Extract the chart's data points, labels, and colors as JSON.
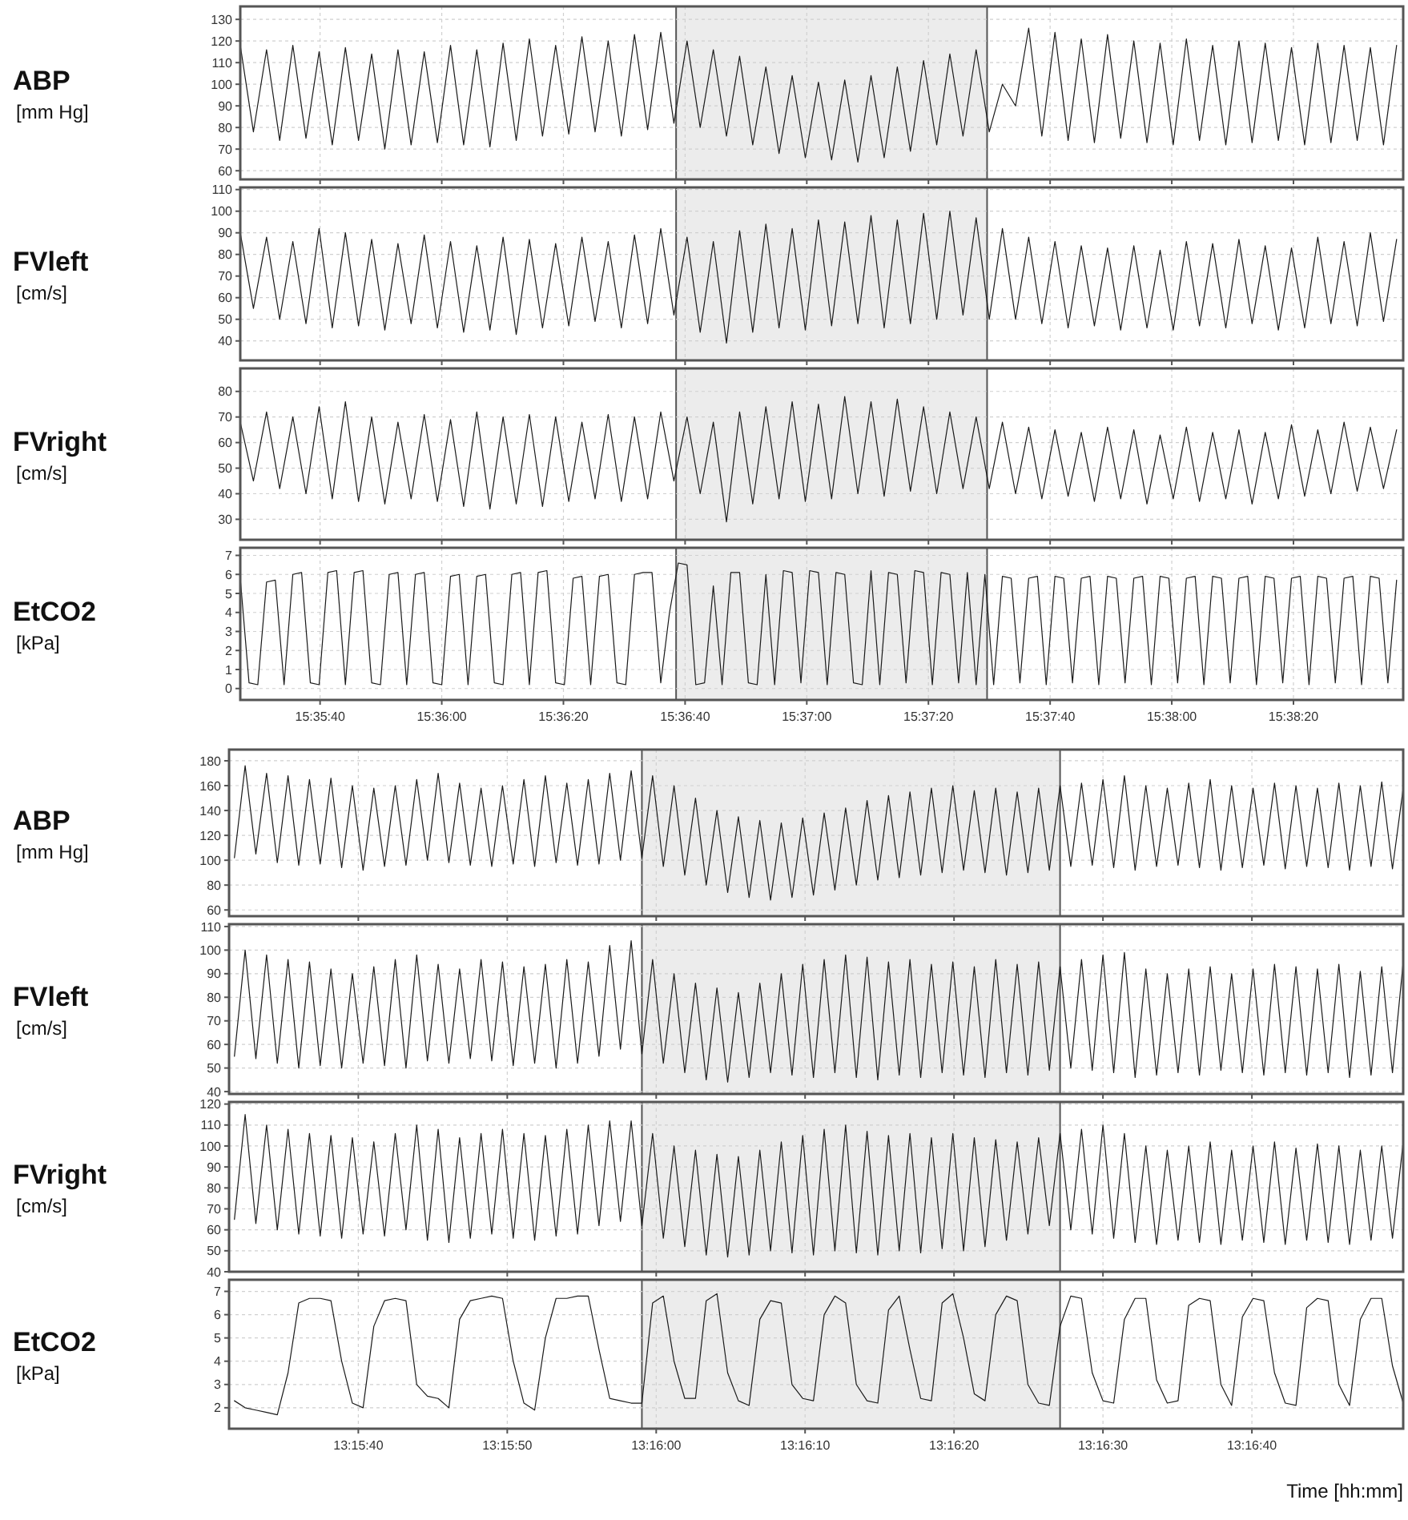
{
  "chart_data": [
    {
      "type": "line",
      "ylabel": "ABP\n[mm Hg]",
      "tick_labels": "y",
      "grid": true,
      "color": "#1a1a1a",
      "x": [
        15.5908,
        15.5914,
        15.592,
        15.5926,
        15.5932,
        15.5938,
        15.5944,
        15.595,
        15.5956,
        15.5962,
        15.5968,
        15.5974,
        15.598,
        15.5986,
        15.5992,
        15.5998,
        15.6004,
        15.601,
        15.6016,
        15.6022,
        15.6028,
        15.6034,
        15.604,
        15.6046,
        15.6052,
        15.6058,
        15.6064,
        15.607,
        15.6076,
        15.6082,
        15.6088,
        15.6094,
        15.61,
        15.6106,
        15.6112,
        15.6118,
        15.6124,
        15.613,
        15.6136,
        15.6142,
        15.6148,
        15.6154,
        15.616,
        15.6166,
        15.6172,
        15.6178,
        15.6184,
        15.619,
        15.6196,
        15.6202,
        15.6208,
        15.6214,
        15.622,
        15.6226,
        15.6232,
        15.6238,
        15.6244,
        15.625,
        15.6256,
        15.6262,
        15.6268,
        15.6274,
        15.628,
        15.6286,
        15.6292,
        15.6298,
        15.6304,
        15.631,
        15.6316,
        15.6322,
        15.6328,
        15.6334,
        15.634,
        15.6346,
        15.6352,
        15.6358,
        15.6364,
        15.637,
        15.6376,
        15.6382,
        15.6388,
        15.6394,
        15.64,
        15.6406,
        15.6412,
        15.6418,
        15.6424,
        15.643,
        15.6436
      ],
      "values": [
        118,
        78,
        116,
        74,
        118,
        75,
        115,
        72,
        117,
        74,
        114,
        70,
        116,
        72,
        115,
        73,
        118,
        72,
        116,
        71,
        119,
        74,
        121,
        76,
        118,
        77,
        122,
        78,
        120,
        76,
        123,
        79,
        124,
        82,
        120,
        80,
        116,
        76,
        113,
        72,
        108,
        68,
        104,
        66,
        101,
        65,
        102,
        64,
        104,
        66,
        108,
        69,
        111,
        72,
        114,
        76,
        116,
        78,
        100,
        90,
        126,
        76,
        124,
        74,
        121,
        73,
        123,
        75,
        120,
        73,
        119,
        72,
        121,
        74,
        118,
        72,
        120,
        73,
        119,
        74,
        117,
        72,
        119,
        73,
        118,
        74,
        117,
        72,
        118
      ],
      "xlim": [
        15.5908,
        15.6439
      ],
      "xticks": [
        {
          "value": 15.594444,
          "label": null
        },
        {
          "value": 15.6,
          "label": null
        },
        {
          "value": 15.605556,
          "label": null
        },
        {
          "value": 15.611111,
          "label": null
        },
        {
          "value": 15.616667,
          "label": null
        },
        {
          "value": 15.622222,
          "label": null
        },
        {
          "value": 15.627778,
          "label": null
        },
        {
          "value": 15.633333,
          "label": null
        },
        {
          "value": 15.638889,
          "label": null
        }
      ],
      "ylim": [
        56,
        136
      ],
      "yticks": [
        60,
        70,
        80,
        90,
        100,
        110,
        120,
        130
      ],
      "bands": [
        {
          "axis": "x",
          "from": 15.6107,
          "to": 15.6249,
          "color": "#ececec"
        }
      ]
    },
    {
      "type": "line",
      "ylabel": "FVleft\n[cm/s]",
      "tick_labels": "y",
      "grid": true,
      "color": "#1a1a1a",
      "x": [
        15.5908,
        15.5914,
        15.592,
        15.5926,
        15.5932,
        15.5938,
        15.5944,
        15.595,
        15.5956,
        15.5962,
        15.5968,
        15.5974,
        15.598,
        15.5986,
        15.5992,
        15.5998,
        15.6004,
        15.601,
        15.6016,
        15.6022,
        15.6028,
        15.6034,
        15.604,
        15.6046,
        15.6052,
        15.6058,
        15.6064,
        15.607,
        15.6076,
        15.6082,
        15.6088,
        15.6094,
        15.61,
        15.6106,
        15.6112,
        15.6118,
        15.6124,
        15.613,
        15.6136,
        15.6142,
        15.6148,
        15.6154,
        15.616,
        15.6166,
        15.6172,
        15.6178,
        15.6184,
        15.619,
        15.6196,
        15.6202,
        15.6208,
        15.6214,
        15.622,
        15.6226,
        15.6232,
        15.6238,
        15.6244,
        15.625,
        15.6256,
        15.6262,
        15.6268,
        15.6274,
        15.628,
        15.6286,
        15.6292,
        15.6298,
        15.6304,
        15.631,
        15.6316,
        15.6322,
        15.6328,
        15.6334,
        15.634,
        15.6346,
        15.6352,
        15.6358,
        15.6364,
        15.637,
        15.6376,
        15.6382,
        15.6388,
        15.6394,
        15.64,
        15.6406,
        15.6412,
        15.6418,
        15.6424,
        15.643,
        15.6436
      ],
      "values": [
        90,
        55,
        88,
        50,
        86,
        48,
        92,
        46,
        90,
        47,
        87,
        45,
        85,
        48,
        89,
        46,
        86,
        44,
        84,
        45,
        88,
        43,
        87,
        46,
        85,
        47,
        88,
        49,
        86,
        46,
        89,
        48,
        92,
        52,
        88,
        44,
        86,
        39,
        91,
        44,
        94,
        46,
        92,
        45,
        96,
        47,
        95,
        48,
        98,
        46,
        96,
        48,
        99,
        50,
        100,
        52,
        97,
        50,
        92,
        50,
        88,
        48,
        86,
        46,
        84,
        47,
        83,
        45,
        84,
        46,
        82,
        45,
        86,
        47,
        85,
        46,
        87,
        48,
        84,
        45,
        83,
        46,
        88,
        48,
        86,
        47,
        90,
        49,
        87
      ],
      "xlim": [
        15.5908,
        15.6439
      ],
      "xticks": [
        {
          "value": 15.594444,
          "label": null
        },
        {
          "value": 15.6,
          "label": null
        },
        {
          "value": 15.605556,
          "label": null
        },
        {
          "value": 15.611111,
          "label": null
        },
        {
          "value": 15.616667,
          "label": null
        },
        {
          "value": 15.622222,
          "label": null
        },
        {
          "value": 15.627778,
          "label": null
        },
        {
          "value": 15.633333,
          "label": null
        },
        {
          "value": 15.638889,
          "label": null
        }
      ],
      "ylim": [
        31,
        111
      ],
      "yticks": [
        40,
        50,
        60,
        70,
        80,
        90,
        100,
        110
      ],
      "bands": [
        {
          "axis": "x",
          "from": 15.6107,
          "to": 15.6249,
          "color": "#ececec"
        }
      ]
    },
    {
      "type": "line",
      "ylabel": "FVright\n[cm/s]",
      "tick_labels": "y",
      "grid": true,
      "color": "#1a1a1a",
      "x": [
        15.5908,
        15.5914,
        15.592,
        15.5926,
        15.5932,
        15.5938,
        15.5944,
        15.595,
        15.5956,
        15.5962,
        15.5968,
        15.5974,
        15.598,
        15.5986,
        15.5992,
        15.5998,
        15.6004,
        15.601,
        15.6016,
        15.6022,
        15.6028,
        15.6034,
        15.604,
        15.6046,
        15.6052,
        15.6058,
        15.6064,
        15.607,
        15.6076,
        15.6082,
        15.6088,
        15.6094,
        15.61,
        15.6106,
        15.6112,
        15.6118,
        15.6124,
        15.613,
        15.6136,
        15.6142,
        15.6148,
        15.6154,
        15.616,
        15.6166,
        15.6172,
        15.6178,
        15.6184,
        15.619,
        15.6196,
        15.6202,
        15.6208,
        15.6214,
        15.622,
        15.6226,
        15.6232,
        15.6238,
        15.6244,
        15.625,
        15.6256,
        15.6262,
        15.6268,
        15.6274,
        15.628,
        15.6286,
        15.6292,
        15.6298,
        15.6304,
        15.631,
        15.6316,
        15.6322,
        15.6328,
        15.6334,
        15.634,
        15.6346,
        15.6352,
        15.6358,
        15.6364,
        15.637,
        15.6376,
        15.6382,
        15.6388,
        15.6394,
        15.64,
        15.6406,
        15.6412,
        15.6418,
        15.6424,
        15.643,
        15.6436
      ],
      "values": [
        68,
        45,
        72,
        42,
        70,
        40,
        74,
        38,
        76,
        37,
        70,
        36,
        68,
        38,
        71,
        37,
        69,
        35,
        72,
        34,
        70,
        36,
        71,
        35,
        70,
        37,
        68,
        38,
        71,
        37,
        70,
        38,
        72,
        45,
        70,
        40,
        68,
        29,
        72,
        36,
        74,
        38,
        76,
        37,
        75,
        38,
        78,
        40,
        76,
        39,
        77,
        41,
        74,
        40,
        72,
        42,
        70,
        42,
        68,
        40,
        66,
        38,
        65,
        39,
        64,
        37,
        66,
        38,
        65,
        36,
        63,
        38,
        66,
        37,
        64,
        38,
        65,
        36,
        64,
        38,
        67,
        39,
        65,
        40,
        68,
        41,
        66,
        42,
        65
      ],
      "xlim": [
        15.5908,
        15.6439
      ],
      "xticks": [
        {
          "value": 15.594444,
          "label": null
        },
        {
          "value": 15.6,
          "label": null
        },
        {
          "value": 15.605556,
          "label": null
        },
        {
          "value": 15.611111,
          "label": null
        },
        {
          "value": 15.616667,
          "label": null
        },
        {
          "value": 15.622222,
          "label": null
        },
        {
          "value": 15.627778,
          "label": null
        },
        {
          "value": 15.633333,
          "label": null
        },
        {
          "value": 15.638889,
          "label": null
        }
      ],
      "ylim": [
        22,
        89
      ],
      "yticks": [
        30,
        40,
        50,
        60,
        70,
        80
      ],
      "bands": [
        {
          "axis": "x",
          "from": 15.6107,
          "to": 15.6249,
          "color": "#ececec"
        }
      ]
    },
    {
      "type": "line",
      "ylabel": "EtCO2\n[kPa]",
      "grid": true,
      "color": "#1a1a1a",
      "x": [
        15.5908,
        15.5912,
        15.5916,
        15.592,
        15.5924,
        15.5928,
        15.5932,
        15.5936,
        15.594,
        15.5944,
        15.5948,
        15.5952,
        15.5956,
        15.596,
        15.5964,
        15.5968,
        15.5972,
        15.5976,
        15.598,
        15.5984,
        15.5988,
        15.5992,
        15.5996,
        15.6,
        15.6004,
        15.6008,
        15.6012,
        15.6016,
        15.602,
        15.6024,
        15.6028,
        15.6032,
        15.6036,
        15.604,
        15.6044,
        15.6048,
        15.6052,
        15.6056,
        15.606,
        15.6064,
        15.6068,
        15.6072,
        15.6076,
        15.608,
        15.6084,
        15.6088,
        15.6092,
        15.6096,
        15.61,
        15.6104,
        15.6108,
        15.6112,
        15.6116,
        15.612,
        15.6124,
        15.6128,
        15.6132,
        15.6136,
        15.614,
        15.6144,
        15.6148,
        15.6152,
        15.6156,
        15.616,
        15.6164,
        15.6168,
        15.6172,
        15.6176,
        15.618,
        15.6184,
        15.6188,
        15.6192,
        15.6196,
        15.62,
        15.6204,
        15.6208,
        15.6212,
        15.6216,
        15.622,
        15.6224,
        15.6228,
        15.6232,
        15.6236,
        15.624,
        15.6244,
        15.6248,
        15.6252,
        15.6256,
        15.626,
        15.6264,
        15.6268,
        15.6272,
        15.6276,
        15.628,
        15.6284,
        15.6288,
        15.6292,
        15.6296,
        15.63,
        15.6304,
        15.6308,
        15.6312,
        15.6316,
        15.632,
        15.6324,
        15.6328,
        15.6332,
        15.6336,
        15.634,
        15.6344,
        15.6348,
        15.6352,
        15.6356,
        15.636,
        15.6364,
        15.6368,
        15.6372,
        15.6376,
        15.638,
        15.6384,
        15.6388,
        15.6392,
        15.6396,
        15.64,
        15.6404,
        15.6408,
        15.6412,
        15.6416,
        15.642,
        15.6424,
        15.6428,
        15.6432,
        15.6436
      ],
      "values": [
        5.8,
        0.3,
        0.2,
        5.6,
        5.7,
        0.2,
        6.0,
        6.1,
        0.3,
        0.2,
        6.1,
        6.2,
        0.2,
        6.1,
        6.2,
        0.3,
        0.2,
        6.0,
        6.1,
        0.2,
        6.0,
        6.1,
        0.3,
        0.2,
        5.9,
        6.0,
        0.2,
        5.9,
        6.0,
        0.3,
        0.2,
        6.0,
        6.1,
        0.2,
        6.1,
        6.2,
        0.3,
        0.2,
        5.8,
        5.9,
        0.2,
        5.9,
        6.0,
        0.3,
        0.2,
        6.0,
        6.1,
        6.1,
        0.3,
        4.0,
        6.6,
        6.5,
        0.2,
        0.3,
        5.4,
        0.2,
        6.1,
        6.1,
        0.3,
        0.2,
        6.0,
        0.2,
        6.2,
        6.1,
        0.3,
        6.2,
        6.1,
        0.2,
        6.1,
        6.0,
        0.3,
        0.2,
        6.2,
        0.2,
        6.1,
        6.0,
        0.3,
        6.2,
        6.1,
        0.2,
        6.1,
        6.0,
        0.3,
        6.1,
        0.2,
        6.0,
        0.2,
        5.9,
        5.8,
        0.3,
        5.8,
        5.9,
        0.2,
        5.9,
        5.8,
        0.3,
        5.8,
        5.9,
        0.2,
        5.9,
        5.8,
        0.3,
        5.8,
        5.9,
        0.2,
        5.9,
        5.8,
        0.3,
        5.8,
        5.9,
        0.2,
        5.9,
        5.8,
        0.3,
        5.8,
        5.9,
        0.2,
        5.9,
        5.8,
        0.3,
        5.8,
        5.9,
        0.2,
        5.9,
        5.8,
        0.3,
        5.8,
        5.9,
        0.2,
        5.9,
        5.8,
        0.3,
        5.7
      ],
      "xlim": [
        15.5908,
        15.6439
      ],
      "xticks": [
        {
          "value": 15.594444,
          "label": "15:35:40"
        },
        {
          "value": 15.6,
          "label": "15:36:00"
        },
        {
          "value": 15.605556,
          "label": "15:36:20"
        },
        {
          "value": 15.611111,
          "label": "15:36:40"
        },
        {
          "value": 15.616667,
          "label": "15:37:00"
        },
        {
          "value": 15.622222,
          "label": "15:37:20"
        },
        {
          "value": 15.627778,
          "label": "15:37:40"
        },
        {
          "value": 15.633333,
          "label": "15:38:00"
        },
        {
          "value": 15.638889,
          "label": "15:38:20"
        }
      ],
      "ylim": [
        -0.6,
        7.4
      ],
      "yticks": [
        0,
        1,
        2,
        3,
        4,
        5,
        6,
        7
      ],
      "bands": [
        {
          "axis": "x",
          "from": 15.6107,
          "to": 15.6249,
          "color": "#ececec"
        }
      ]
    },
    {
      "type": "line",
      "ylabel": "ABP\n[mm Hg]",
      "tick_labels": "y",
      "grid": true,
      "color": "#1a1a1a",
      "x": [
        13.2588,
        13.259,
        13.2592,
        13.2594,
        13.2596,
        13.2598,
        13.26,
        13.2602,
        13.2604,
        13.2606,
        13.2608,
        13.261,
        13.2612,
        13.2614,
        13.2616,
        13.2618,
        13.262,
        13.2622,
        13.2624,
        13.2626,
        13.2628,
        13.263,
        13.2632,
        13.2634,
        13.2636,
        13.2638,
        13.264,
        13.2642,
        13.2644,
        13.2646,
        13.2648,
        13.265,
        13.2652,
        13.2654,
        13.2656,
        13.2658,
        13.266,
        13.2662,
        13.2664,
        13.2666,
        13.2668,
        13.267,
        13.2672,
        13.2674,
        13.2676,
        13.2678,
        13.268,
        13.2682,
        13.2684,
        13.2686,
        13.2688,
        13.269,
        13.2692,
        13.2694,
        13.2696,
        13.2698,
        13.27,
        13.2702,
        13.2704,
        13.2706,
        13.2708,
        13.271,
        13.2712,
        13.2714,
        13.2716,
        13.2718,
        13.272,
        13.2722,
        13.2724,
        13.2726,
        13.2728,
        13.273,
        13.2732,
        13.2734,
        13.2736,
        13.2738,
        13.274,
        13.2742,
        13.2744,
        13.2746,
        13.2748,
        13.275,
        13.2752,
        13.2754,
        13.2756,
        13.2758,
        13.276,
        13.2762,
        13.2764,
        13.2766,
        13.2768,
        13.277,
        13.2772,
        13.2774,
        13.2776,
        13.2778,
        13.278,
        13.2782,
        13.2784,
        13.2786,
        13.2788,
        13.279,
        13.2792,
        13.2794,
        13.2796,
        13.2798,
        13.28,
        13.2802,
        13.2804,
        13.2806
      ],
      "values": [
        102,
        176,
        105,
        170,
        98,
        168,
        96,
        165,
        97,
        166,
        94,
        160,
        92,
        158,
        95,
        160,
        96,
        165,
        100,
        170,
        98,
        162,
        96,
        158,
        95,
        160,
        97,
        165,
        95,
        168,
        98,
        162,
        96,
        165,
        97,
        170,
        100,
        172,
        102,
        168,
        95,
        160,
        88,
        150,
        80,
        140,
        74,
        135,
        70,
        132,
        68,
        130,
        70,
        134,
        72,
        138,
        76,
        142,
        80,
        148,
        84,
        152,
        86,
        155,
        88,
        158,
        90,
        160,
        92,
        156,
        90,
        158,
        88,
        155,
        90,
        158,
        92,
        160,
        95,
        162,
        96,
        165,
        94,
        168,
        92,
        160,
        95,
        158,
        96,
        162,
        94,
        165,
        92,
        160,
        94,
        158,
        96,
        162,
        93,
        160,
        95,
        158,
        94,
        162,
        92,
        160,
        95,
        163,
        93,
        158
      ],
      "xlim": [
        13.2587,
        13.2806
      ],
      "xticks": [
        {
          "value": 13.261111,
          "label": null
        },
        {
          "value": 13.263889,
          "label": null
        },
        {
          "value": 13.266667,
          "label": null
        },
        {
          "value": 13.269444,
          "label": null
        },
        {
          "value": 13.272222,
          "label": null
        },
        {
          "value": 13.275,
          "label": null
        },
        {
          "value": 13.277778,
          "label": null
        }
      ],
      "ylim": [
        55,
        189
      ],
      "yticks": [
        60,
        80,
        100,
        120,
        140,
        160,
        180
      ],
      "bands": [
        {
          "axis": "x",
          "from": 13.2664,
          "to": 13.2742,
          "color": "#ececec"
        }
      ]
    },
    {
      "type": "line",
      "ylabel": "FVleft\n[cm/s]",
      "tick_labels": "y",
      "grid": true,
      "color": "#1a1a1a",
      "x": [
        13.2588,
        13.259,
        13.2592,
        13.2594,
        13.2596,
        13.2598,
        13.26,
        13.2602,
        13.2604,
        13.2606,
        13.2608,
        13.261,
        13.2612,
        13.2614,
        13.2616,
        13.2618,
        13.262,
        13.2622,
        13.2624,
        13.2626,
        13.2628,
        13.263,
        13.2632,
        13.2634,
        13.2636,
        13.2638,
        13.264,
        13.2642,
        13.2644,
        13.2646,
        13.2648,
        13.265,
        13.2652,
        13.2654,
        13.2656,
        13.2658,
        13.266,
        13.2662,
        13.2664,
        13.2666,
        13.2668,
        13.267,
        13.2672,
        13.2674,
        13.2676,
        13.2678,
        13.268,
        13.2682,
        13.2684,
        13.2686,
        13.2688,
        13.269,
        13.2692,
        13.2694,
        13.2696,
        13.2698,
        13.27,
        13.2702,
        13.2704,
        13.2706,
        13.2708,
        13.271,
        13.2712,
        13.2714,
        13.2716,
        13.2718,
        13.272,
        13.2722,
        13.2724,
        13.2726,
        13.2728,
        13.273,
        13.2732,
        13.2734,
        13.2736,
        13.2738,
        13.274,
        13.2742,
        13.2744,
        13.2746,
        13.2748,
        13.275,
        13.2752,
        13.2754,
        13.2756,
        13.2758,
        13.276,
        13.2762,
        13.2764,
        13.2766,
        13.2768,
        13.277,
        13.2772,
        13.2774,
        13.2776,
        13.2778,
        13.278,
        13.2782,
        13.2784,
        13.2786,
        13.2788,
        13.279,
        13.2792,
        13.2794,
        13.2796,
        13.2798,
        13.28,
        13.2802,
        13.2804,
        13.2806
      ],
      "values": [
        55,
        100,
        54,
        98,
        52,
        96,
        50,
        95,
        51,
        92,
        50,
        90,
        52,
        93,
        51,
        96,
        50,
        98,
        53,
        94,
        52,
        92,
        54,
        96,
        53,
        95,
        51,
        93,
        52,
        94,
        50,
        96,
        52,
        95,
        55,
        102,
        58,
        104,
        56,
        96,
        52,
        90,
        48,
        86,
        45,
        84,
        44,
        82,
        46,
        86,
        48,
        90,
        47,
        94,
        46,
        96,
        48,
        98,
        46,
        97,
        45,
        95,
        47,
        96,
        46,
        94,
        48,
        95,
        47,
        93,
        46,
        96,
        48,
        94,
        47,
        95,
        49,
        93,
        50,
        96,
        49,
        98,
        48,
        99,
        46,
        92,
        47,
        90,
        48,
        92,
        47,
        93,
        49,
        90,
        48,
        92,
        47,
        94,
        48,
        93,
        47,
        92,
        48,
        94,
        46,
        91,
        47,
        93,
        48,
        95
      ],
      "xlim": [
        13.2587,
        13.2806
      ],
      "xticks": [
        {
          "value": 13.261111,
          "label": null
        },
        {
          "value": 13.263889,
          "label": null
        },
        {
          "value": 13.266667,
          "label": null
        },
        {
          "value": 13.269444,
          "label": null
        },
        {
          "value": 13.272222,
          "label": null
        },
        {
          "value": 13.275,
          "label": null
        },
        {
          "value": 13.277778,
          "label": null
        }
      ],
      "ylim": [
        39,
        111
      ],
      "yticks": [
        40,
        50,
        60,
        70,
        80,
        90,
        100,
        110
      ],
      "bands": [
        {
          "axis": "x",
          "from": 13.2664,
          "to": 13.2742,
          "color": "#ececec"
        }
      ]
    },
    {
      "type": "line",
      "ylabel": "FVright\n[cm/s]",
      "tick_labels": "y",
      "grid": true,
      "color": "#1a1a1a",
      "x": [
        13.2588,
        13.259,
        13.2592,
        13.2594,
        13.2596,
        13.2598,
        13.26,
        13.2602,
        13.2604,
        13.2606,
        13.2608,
        13.261,
        13.2612,
        13.2614,
        13.2616,
        13.2618,
        13.262,
        13.2622,
        13.2624,
        13.2626,
        13.2628,
        13.263,
        13.2632,
        13.2634,
        13.2636,
        13.2638,
        13.264,
        13.2642,
        13.2644,
        13.2646,
        13.2648,
        13.265,
        13.2652,
        13.2654,
        13.2656,
        13.2658,
        13.266,
        13.2662,
        13.2664,
        13.2666,
        13.2668,
        13.267,
        13.2672,
        13.2674,
        13.2676,
        13.2678,
        13.268,
        13.2682,
        13.2684,
        13.2686,
        13.2688,
        13.269,
        13.2692,
        13.2694,
        13.2696,
        13.2698,
        13.27,
        13.2702,
        13.2704,
        13.2706,
        13.2708,
        13.271,
        13.2712,
        13.2714,
        13.2716,
        13.2718,
        13.272,
        13.2722,
        13.2724,
        13.2726,
        13.2728,
        13.273,
        13.2732,
        13.2734,
        13.2736,
        13.2738,
        13.274,
        13.2742,
        13.2744,
        13.2746,
        13.2748,
        13.275,
        13.2752,
        13.2754,
        13.2756,
        13.2758,
        13.276,
        13.2762,
        13.2764,
        13.2766,
        13.2768,
        13.277,
        13.2772,
        13.2774,
        13.2776,
        13.2778,
        13.278,
        13.2782,
        13.2784,
        13.2786,
        13.2788,
        13.279,
        13.2792,
        13.2794,
        13.2796,
        13.2798,
        13.28,
        13.2802,
        13.2804,
        13.2806
      ],
      "values": [
        65,
        115,
        63,
        110,
        60,
        108,
        58,
        106,
        57,
        105,
        56,
        104,
        58,
        102,
        57,
        106,
        60,
        110,
        55,
        108,
        54,
        104,
        56,
        106,
        58,
        108,
        56,
        106,
        55,
        105,
        57,
        108,
        58,
        110,
        62,
        112,
        64,
        112,
        62,
        106,
        56,
        100,
        52,
        98,
        48,
        96,
        47,
        95,
        48,
        98,
        50,
        102,
        49,
        105,
        48,
        108,
        50,
        110,
        49,
        107,
        48,
        105,
        50,
        106,
        49,
        104,
        51,
        106,
        50,
        104,
        52,
        103,
        55,
        102,
        58,
        104,
        62,
        106,
        60,
        108,
        58,
        110,
        56,
        106,
        54,
        100,
        53,
        98,
        55,
        100,
        54,
        102,
        53,
        98,
        55,
        100,
        54,
        102,
        53,
        99,
        55,
        101,
        54,
        100,
        53,
        98,
        55,
        100,
        56,
        102
      ],
      "xlim": [
        13.2587,
        13.2806
      ],
      "xticks": [
        {
          "value": 13.261111,
          "label": null
        },
        {
          "value": 13.263889,
          "label": null
        },
        {
          "value": 13.266667,
          "label": null
        },
        {
          "value": 13.269444,
          "label": null
        },
        {
          "value": 13.272222,
          "label": null
        },
        {
          "value": 13.275,
          "label": null
        },
        {
          "value": 13.277778,
          "label": null
        }
      ],
      "ylim": [
        40,
        121
      ],
      "yticks": [
        40,
        50,
        60,
        70,
        80,
        90,
        100,
        110,
        120
      ],
      "bands": [
        {
          "axis": "x",
          "from": 13.2664,
          "to": 13.2742,
          "color": "#ececec"
        }
      ]
    },
    {
      "type": "line",
      "ylabel": "EtCO2\n[kPa]",
      "xlabel": "Time [hh:mm]",
      "grid": true,
      "color": "#1a1a1a",
      "x": [
        13.2588,
        13.259,
        13.2592,
        13.2594,
        13.2596,
        13.2598,
        13.26,
        13.2602,
        13.2604,
        13.2606,
        13.2608,
        13.261,
        13.2612,
        13.2614,
        13.2616,
        13.2618,
        13.262,
        13.2622,
        13.2624,
        13.2626,
        13.2628,
        13.263,
        13.2632,
        13.2634,
        13.2636,
        13.2638,
        13.264,
        13.2642,
        13.2644,
        13.2646,
        13.2648,
        13.265,
        13.2652,
        13.2654,
        13.2656,
        13.2658,
        13.266,
        13.2662,
        13.2664,
        13.2666,
        13.2668,
        13.267,
        13.2672,
        13.2674,
        13.2676,
        13.2678,
        13.268,
        13.2682,
        13.2684,
        13.2686,
        13.2688,
        13.269,
        13.2692,
        13.2694,
        13.2696,
        13.2698,
        13.27,
        13.2702,
        13.2704,
        13.2706,
        13.2708,
        13.271,
        13.2712,
        13.2714,
        13.2716,
        13.2718,
        13.272,
        13.2722,
        13.2724,
        13.2726,
        13.2728,
        13.273,
        13.2732,
        13.2734,
        13.2736,
        13.2738,
        13.274,
        13.2742,
        13.2744,
        13.2746,
        13.2748,
        13.275,
        13.2752,
        13.2754,
        13.2756,
        13.2758,
        13.276,
        13.2762,
        13.2764,
        13.2766,
        13.2768,
        13.277,
        13.2772,
        13.2774,
        13.2776,
        13.2778,
        13.278,
        13.2782,
        13.2784,
        13.2786,
        13.2788,
        13.279,
        13.2792,
        13.2794,
        13.2796,
        13.2798,
        13.28,
        13.2802,
        13.2804,
        13.2806
      ],
      "values": [
        2.3,
        2.0,
        1.9,
        1.8,
        1.7,
        3.5,
        6.5,
        6.7,
        6.7,
        6.6,
        4.0,
        2.2,
        2.0,
        5.5,
        6.6,
        6.7,
        6.6,
        3.0,
        2.5,
        2.4,
        2.0,
        5.8,
        6.6,
        6.7,
        6.8,
        6.7,
        4.0,
        2.2,
        1.9,
        5.0,
        6.7,
        6.7,
        6.8,
        6.8,
        4.5,
        2.4,
        2.3,
        2.2,
        2.2,
        6.5,
        6.8,
        4.0,
        2.4,
        2.4,
        6.6,
        6.9,
        3.5,
        2.3,
        2.1,
        5.8,
        6.6,
        6.5,
        3.0,
        2.4,
        2.3,
        6.0,
        6.8,
        6.5,
        3.0,
        2.3,
        2.2,
        6.2,
        6.8,
        4.5,
        2.4,
        2.3,
        6.5,
        6.9,
        5.0,
        2.6,
        2.3,
        6.0,
        6.8,
        6.6,
        3.0,
        2.2,
        2.1,
        5.5,
        6.8,
        6.7,
        3.5,
        2.3,
        2.2,
        5.8,
        6.7,
        6.7,
        3.2,
        2.2,
        2.3,
        6.4,
        6.7,
        6.6,
        3.0,
        2.1,
        5.9,
        6.7,
        6.6,
        3.5,
        2.2,
        2.1,
        6.3,
        6.7,
        6.6,
        3.0,
        2.1,
        5.8,
        6.7,
        6.7,
        3.8,
        2.2
      ],
      "xlim": [
        13.2587,
        13.2806
      ],
      "xticks": [
        {
          "value": 13.261111,
          "label": "13:15:40"
        },
        {
          "value": 13.263889,
          "label": "13:15:50"
        },
        {
          "value": 13.266667,
          "label": "13:16:00"
        },
        {
          "value": 13.269444,
          "label": "13:16:10"
        },
        {
          "value": 13.272222,
          "label": "13:16:20"
        },
        {
          "value": 13.275,
          "label": "13:16:30"
        },
        {
          "value": 13.277778,
          "label": "13:16:40"
        }
      ],
      "ylim": [
        1.1,
        7.5
      ],
      "yticks": [
        2,
        3,
        4,
        5,
        6,
        7
      ],
      "bands": [
        {
          "axis": "x",
          "from": 13.2664,
          "to": 13.2742,
          "color": "#ececec"
        }
      ]
    }
  ]
}
